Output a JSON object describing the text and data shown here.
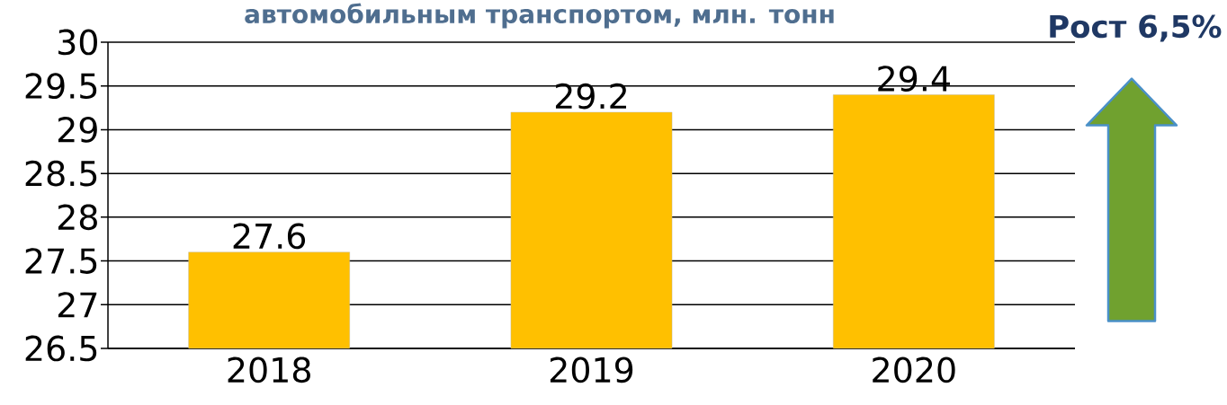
{
  "chart_data": {
    "type": "bar",
    "title": "автомобильным транспортом, млн. тонн",
    "categories": [
      "2018",
      "2019",
      "2020"
    ],
    "values": [
      27.6,
      29.2,
      29.4
    ],
    "color": "#ffc000",
    "ylim": [
      26.5,
      30
    ],
    "yticks": [
      26.5,
      27,
      27.5,
      28,
      28.5,
      29,
      29.5,
      30
    ],
    "grid": "y",
    "data_labels": true,
    "annotations": [
      "Рост 6,5%"
    ]
  }
}
